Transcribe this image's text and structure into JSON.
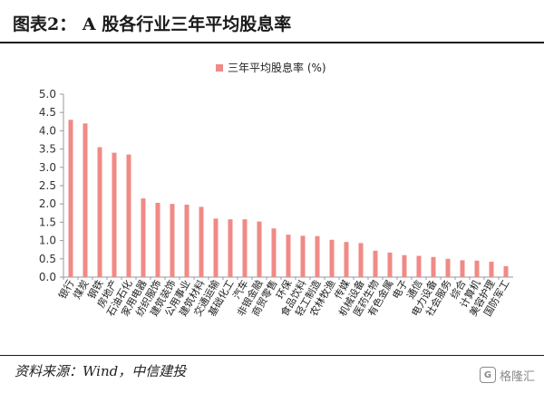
{
  "header": {
    "figure_title": "图表2：  A 股各行业三年平均股息率"
  },
  "footer": {
    "source": "资料来源：Wind，中信建投",
    "watermark": "格隆汇"
  },
  "colors": {
    "bar": "#f08a86",
    "axis": "#9a9a9a"
  },
  "chart_data": {
    "type": "bar",
    "legend": "三年平均股息率 (%)",
    "legend_position": "top-center",
    "grid": false,
    "ylim": [
      0,
      5
    ],
    "yticks": [
      "0.0",
      "0.5",
      "1.0",
      "1.5",
      "2.0",
      "2.5",
      "3.0",
      "3.5",
      "4.0",
      "4.5",
      "5.0"
    ],
    "categories": [
      "银行",
      "煤炭",
      "钢铁",
      "房地产",
      "石油石化",
      "家用电器",
      "纺织服饰",
      "建筑装饰",
      "公用事业",
      "建筑材料",
      "交通运输",
      "基础化工",
      "汽车",
      "非银金融",
      "商贸零售",
      "环保",
      "食品饮料",
      "轻工制造",
      "农林牧渔",
      "传媒",
      "机械设备",
      "医药生物",
      "有色金属",
      "电子",
      "通信",
      "电力设备",
      "社会服务",
      "综合",
      "计算机",
      "美容护理",
      "国防军工"
    ],
    "values": [
      4.3,
      4.2,
      3.55,
      3.4,
      3.35,
      2.15,
      2.03,
      2.0,
      1.98,
      1.92,
      1.6,
      1.58,
      1.58,
      1.52,
      1.33,
      1.16,
      1.13,
      1.12,
      1.02,
      0.96,
      0.93,
      0.72,
      0.67,
      0.6,
      0.58,
      0.55,
      0.5,
      0.46,
      0.45,
      0.42,
      0.3
    ]
  }
}
